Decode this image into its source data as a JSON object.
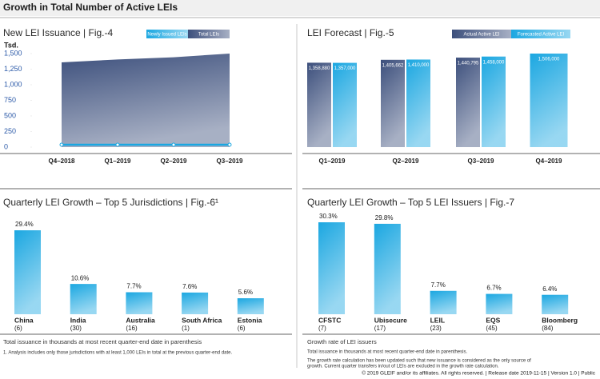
{
  "header": {
    "title": "Growth in Total Number of Active LEIs"
  },
  "chart_data": [
    {
      "type": "area",
      "title": "New LEI Issuance  |  Fig.-4",
      "y_label": "Tsd.",
      "categories": [
        "Q4–2018",
        "Q1–2019",
        "Q2–2019",
        "Q3–2019"
      ],
      "series": [
        {
          "name": "Newly Issued LEIs",
          "color": "#1ba7e1",
          "values": [
            38,
            38,
            38,
            38
          ]
        },
        {
          "name": "Total LEIs",
          "color": "#3c4f7c",
          "values": [
            1359,
            1406,
            1441,
            1500
          ]
        }
      ],
      "ylim": [
        0,
        1500
      ],
      "yticks": [
        0,
        250,
        500,
        750,
        {
          "value": 1000,
          "label": "1,000"
        },
        {
          "value": 1250,
          "label": "1,250"
        },
        {
          "value": 1500,
          "label": "1,500"
        }
      ]
    },
    {
      "type": "grouped-bar",
      "title": "LEI Forecast  |  Fig.-5",
      "categories": [
        "Q1–2019",
        "Q2–2019",
        "Q3–2019",
        "Q4–2019"
      ],
      "series": [
        {
          "name": "Actual Active LEI",
          "color": "#3c4f7c",
          "values": [
            1358880,
            1405662,
            1440795,
            null
          ],
          "value_labels": [
            "1,358,880",
            "1,405,662",
            "1,440,795",
            null
          ]
        },
        {
          "name": "Forecasted Active LEI",
          "color": "#1ba7e1",
          "values": [
            1357000,
            1410000,
            1458000,
            1506000
          ],
          "value_labels": [
            "1,357,000",
            "1,410,000",
            "1,458,000",
            "1,506,000"
          ]
        }
      ]
    },
    {
      "type": "bar",
      "title": "Quarterly LEI Growth – Top 5 Jurisdictions  |  Fig.-6¹",
      "categories": [
        "China",
        "India",
        "Australia",
        "South Africa",
        "Estonia"
      ],
      "category_notes": [
        "(6)",
        "(30)",
        "(16)",
        "(1)",
        "(6)"
      ],
      "values": [
        29.4,
        10.6,
        7.7,
        7.6,
        5.6
      ],
      "value_labels": [
        "29.4%",
        "10.6%",
        "7.7%",
        "7.6%",
        "5.6%"
      ],
      "color": "#1ba7e1",
      "notes": [
        "Total issuance in thousands at most recent quarter-end date in parenthesis",
        "1. Analysis includes only those jurisdictions with at least 1,000 LEIs in total at the previous quarter-end date."
      ]
    },
    {
      "type": "bar",
      "title": "Quarterly LEI Growth – Top 5 LEI Issuers  |  Fig.-7",
      "categories": [
        "CFSTC",
        "Ubisecure",
        "LEIL",
        "EQS",
        "Bloomberg"
      ],
      "category_notes": [
        "(7)",
        "(17)",
        "(23)",
        "(45)",
        "(84)"
      ],
      "values": [
        30.3,
        29.8,
        7.7,
        6.7,
        6.4
      ],
      "value_labels": [
        "30.3%",
        "29.8%",
        "7.7%",
        "6.7%",
        "6.4%"
      ],
      "color": "#1ba7e1",
      "notes": [
        "Growth rate of LEI issuers",
        "Total issuance in thousands at most recent quarter-end date in parenthesis.",
        "The growth rate calculation has been updated such that new issuance is considered as the only source of",
        "growth. Current quarter transfers in/out of LEIs are excluded in the growth rate calculation."
      ]
    }
  ],
  "footer": "© 2019 GLEIF and/or its affiliates. All rights reserved.  |  Release date 2019-11-15  |  Version 1.0  |  Public"
}
